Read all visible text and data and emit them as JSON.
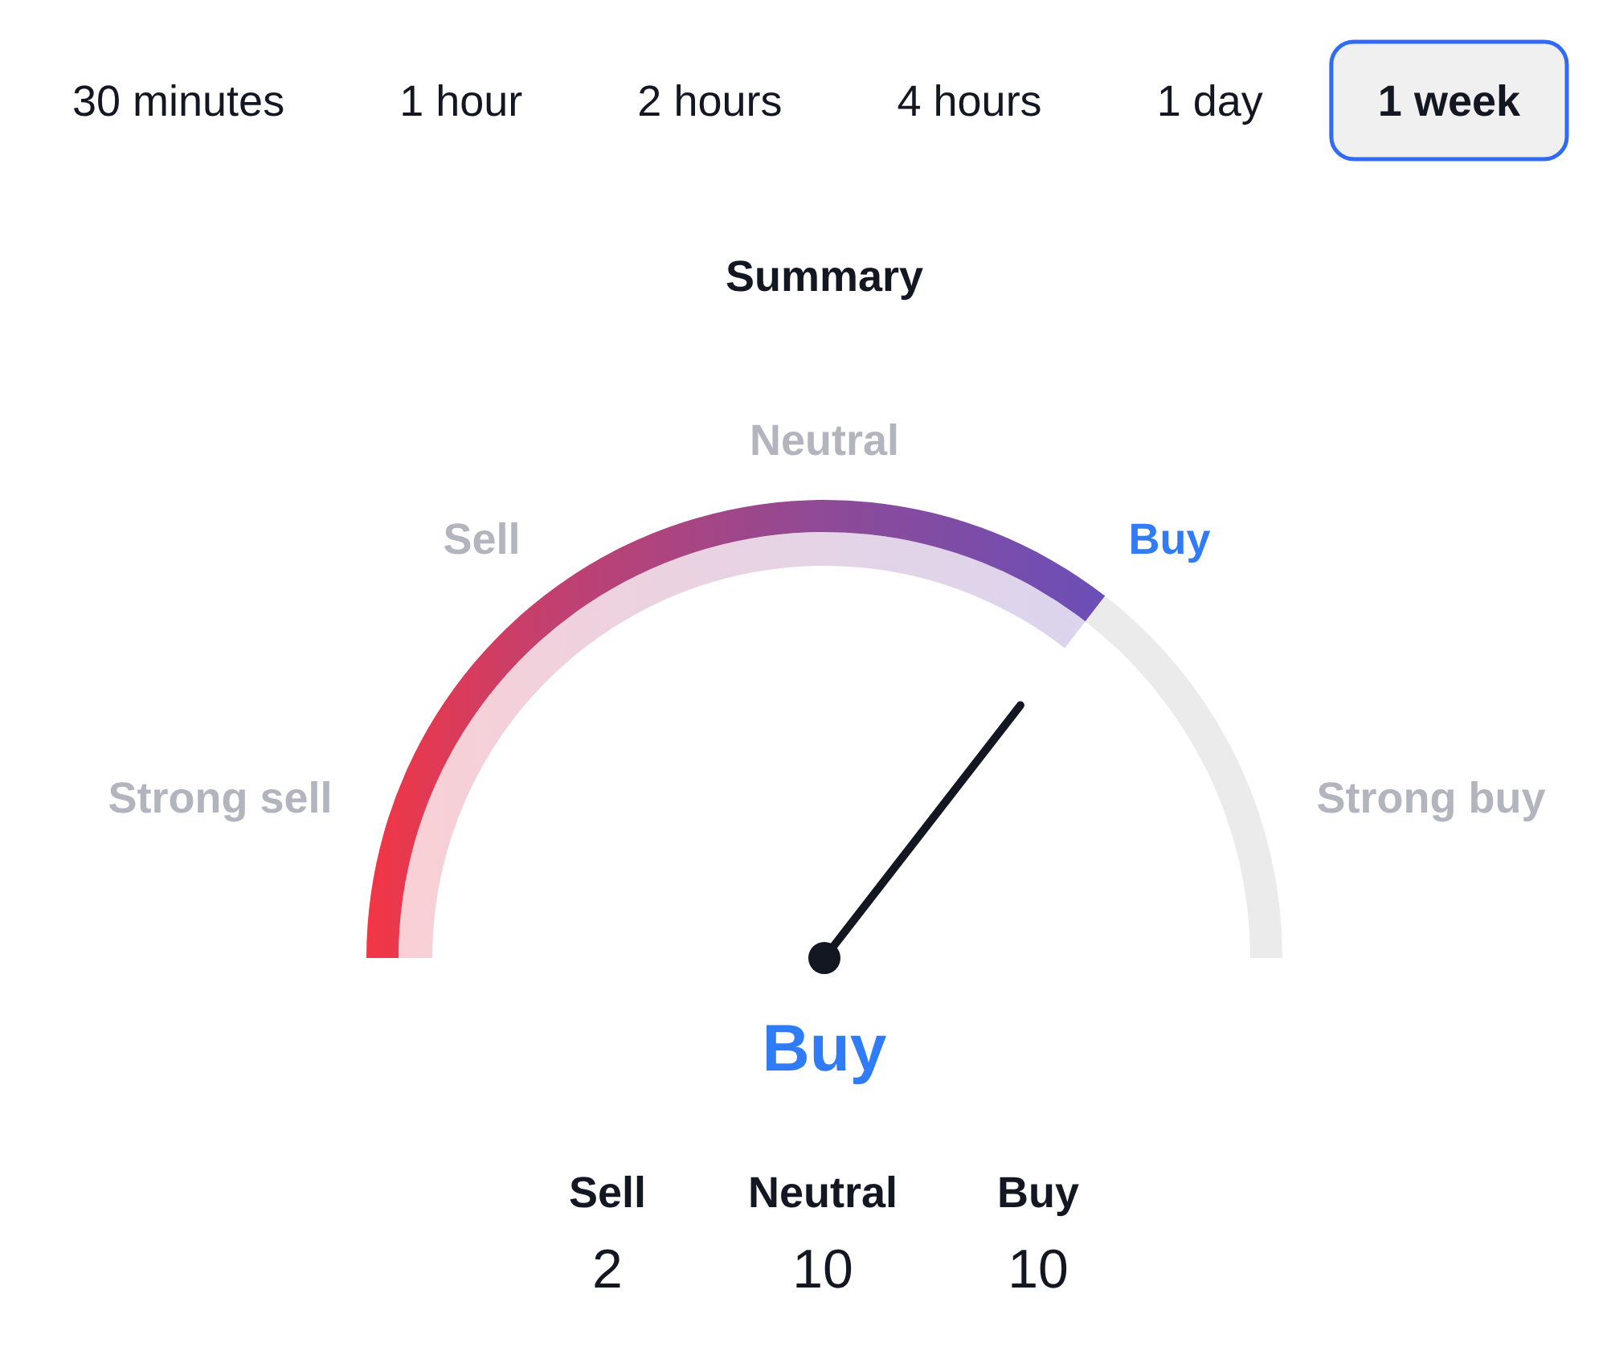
{
  "chart_data": [
    {
      "type": "other",
      "categories": [
        "30 minutes",
        "1 hour",
        "2 hours",
        "4 hours",
        "1 day",
        "1 week"
      ]
    },
    {
      "type": "donut",
      "title": "Summary",
      "categories": [
        null,
        null
      ],
      "values": [
        71,
        29
      ],
      "annotations": [
        "Strong sell",
        "Sell",
        "Neutral",
        "Buy",
        "Strong buy"
      ]
    },
    {
      "type": "other",
      "categories": [
        "Sell",
        "Neutral",
        "Buy"
      ],
      "values": [
        2,
        10,
        10
      ],
      "data_labels": true
    }
  ]
}
